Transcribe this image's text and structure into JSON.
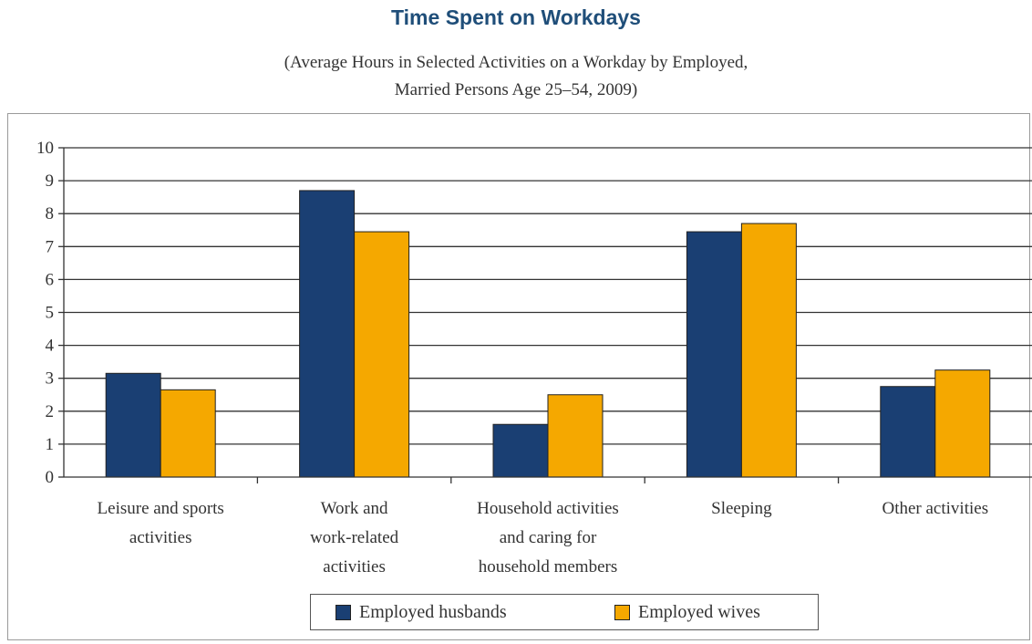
{
  "chart_data": {
    "type": "bar",
    "title": "Time Spent on Workdays",
    "subtitle": [
      "(Average Hours in Selected Activities on a Workday by Employed,",
      "Married Persons Age 25–54, 2009)"
    ],
    "categories": [
      [
        "Leisure and sports",
        "activities"
      ],
      [
        "Work and",
        "work-related",
        "activities"
      ],
      [
        "Household activities",
        "and caring for",
        "household members"
      ],
      [
        "Sleeping"
      ],
      [
        "Other activities"
      ]
    ],
    "series": [
      {
        "name": "Employed husbands",
        "color": "#1a3f73",
        "values": [
          3.15,
          8.7,
          1.6,
          7.45,
          2.75
        ]
      },
      {
        "name": "Employed wives",
        "color": "#f5a800",
        "values": [
          2.65,
          7.45,
          2.5,
          7.7,
          3.25
        ]
      }
    ],
    "ylim": [
      0,
      10
    ],
    "yticks": [
      "0",
      "1",
      "2",
      "3",
      "4",
      "5",
      "6",
      "7",
      "8",
      "9",
      "10"
    ],
    "grid": true,
    "legend_position": "bottom-center",
    "xlabel": "",
    "ylabel": ""
  }
}
